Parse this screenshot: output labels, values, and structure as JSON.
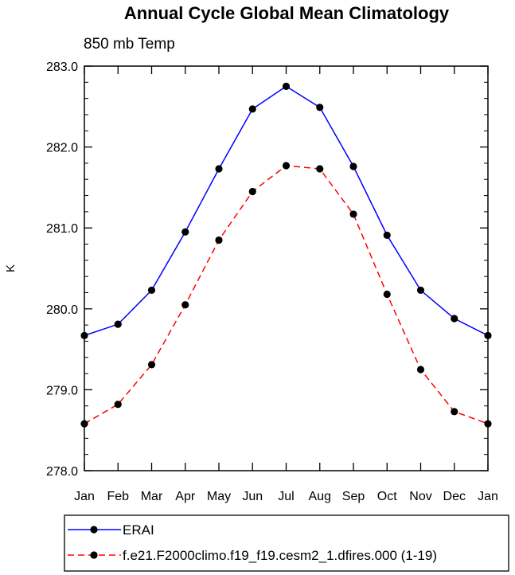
{
  "chart_data": {
    "type": "line",
    "title": "Annual Cycle Global Mean Climatology",
    "subtitle": "850 mb Temp",
    "xlabel": "",
    "ylabel": "K",
    "categories": [
      "Jan",
      "Feb",
      "Mar",
      "Apr",
      "May",
      "Jun",
      "Jul",
      "Aug",
      "Sep",
      "Oct",
      "Nov",
      "Dec",
      "Jan"
    ],
    "ylim": [
      278.0,
      283.0
    ],
    "yticks": [
      "278.0",
      "279.0",
      "280.0",
      "281.0",
      "282.0",
      "283.0"
    ],
    "grid": false,
    "legend_position": "bottom",
    "series": [
      {
        "name": "ERAI",
        "color": "#0000ff",
        "line_style": "solid",
        "marker": "filled-circle",
        "values": [
          279.67,
          279.81,
          280.23,
          280.95,
          281.73,
          282.47,
          282.75,
          282.49,
          281.76,
          280.91,
          280.23,
          279.88,
          279.67
        ]
      },
      {
        "name": "f.e21.F2000climo.f19_f19.cesm2_1.dfires.000 (1-19)",
        "color": "#ff0000",
        "line_style": "dashed",
        "marker": "filled-circle",
        "values": [
          278.58,
          278.82,
          279.31,
          280.05,
          280.85,
          281.45,
          281.77,
          281.73,
          281.17,
          280.18,
          279.25,
          278.73,
          278.58
        ]
      }
    ]
  }
}
